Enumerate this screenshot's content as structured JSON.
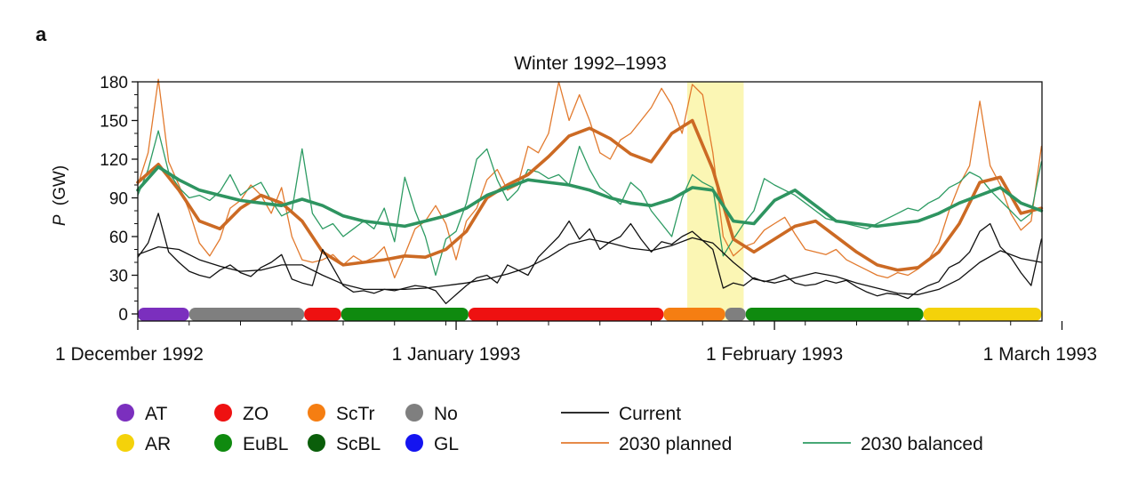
{
  "panel_label": "a",
  "chart_data": {
    "type": "line",
    "title": "Winter 1992–1993",
    "ylabel_var": "P",
    "ylabel_unit": "(GW)",
    "xlabel": "",
    "ylim": [
      0,
      180
    ],
    "yticks": [
      0,
      30,
      60,
      90,
      120,
      150,
      180
    ],
    "xlim_days": [
      0,
      88
    ],
    "xticks": [
      {
        "day": 0,
        "label": "1 December 1992"
      },
      {
        "day": 31,
        "label": "1 January 1993"
      },
      {
        "day": 62,
        "label": "1 February 1993"
      },
      {
        "day": 90,
        "label": "1 March 1993"
      }
    ],
    "grid": false,
    "highlight": {
      "start": 53.5,
      "end": 59.0,
      "color": "#fbf6b4"
    },
    "series": [
      {
        "name": "Current",
        "color": "#111111",
        "style": "thin",
        "x": [
          0,
          1,
          2,
          3,
          4,
          5,
          6,
          7,
          8,
          9,
          10,
          11,
          12,
          13,
          14,
          15,
          16,
          17,
          18,
          19,
          20,
          21,
          22,
          23,
          24,
          25,
          26,
          27,
          28,
          29,
          30,
          31,
          32,
          33,
          34,
          35,
          36,
          37,
          38,
          39,
          40,
          41,
          42,
          43,
          44,
          45,
          46,
          47,
          48,
          49,
          50,
          51,
          52,
          53,
          54,
          55,
          56,
          57,
          58,
          59,
          60,
          61,
          62,
          63,
          64,
          65,
          66,
          67,
          68,
          69,
          70,
          71,
          72,
          73,
          74,
          75,
          76,
          77,
          78,
          79,
          80,
          81,
          82,
          83,
          84,
          85,
          86,
          87,
          88
        ],
        "values": [
          44,
          55,
          78,
          48,
          40,
          33,
          30,
          28,
          34,
          38,
          32,
          29,
          36,
          40,
          46,
          27,
          24,
          22,
          50,
          36,
          22,
          17,
          18,
          16,
          19,
          18,
          20,
          22,
          21,
          18,
          8,
          15,
          22,
          28,
          30,
          24,
          38,
          34,
          30,
          44,
          52,
          60,
          72,
          58,
          66,
          50,
          56,
          60,
          70,
          58,
          48,
          56,
          54,
          60,
          64,
          57,
          50,
          20,
          24,
          22,
          28,
          25,
          27,
          30,
          24,
          22,
          23,
          26,
          24,
          26,
          21,
          17,
          14,
          16,
          15,
          12,
          18,
          22,
          25,
          36,
          40,
          48,
          64,
          70,
          52,
          44,
          32,
          22,
          58
        ]
      },
      {
        "name": "2030 planned",
        "color": "#e27a2e",
        "style": "thin",
        "x": [
          0,
          1,
          2,
          3,
          4,
          5,
          6,
          7,
          8,
          9,
          10,
          11,
          12,
          13,
          14,
          15,
          16,
          17,
          18,
          19,
          20,
          21,
          22,
          23,
          24,
          25,
          26,
          27,
          28,
          29,
          30,
          31,
          32,
          33,
          34,
          35,
          36,
          37,
          38,
          39,
          40,
          41,
          42,
          43,
          44,
          45,
          46,
          47,
          48,
          49,
          50,
          51,
          52,
          53,
          54,
          55,
          56,
          57,
          58,
          59,
          60,
          61,
          62,
          63,
          64,
          65,
          66,
          67,
          68,
          69,
          70,
          71,
          72,
          73,
          74,
          75,
          76,
          77,
          78,
          79,
          80,
          81,
          82,
          83,
          84,
          85,
          86,
          87,
          88
        ],
        "values": [
          100,
          125,
          182,
          118,
          100,
          80,
          55,
          45,
          58,
          82,
          88,
          100,
          92,
          78,
          98,
          60,
          42,
          40,
          42,
          46,
          38,
          45,
          40,
          44,
          52,
          28,
          46,
          66,
          72,
          84,
          70,
          42,
          72,
          82,
          104,
          112,
          96,
          100,
          130,
          125,
          140,
          180,
          150,
          170,
          150,
          125,
          120,
          135,
          140,
          150,
          160,
          175,
          162,
          140,
          178,
          170,
          125,
          60,
          45,
          52,
          55,
          65,
          70,
          75,
          62,
          50,
          48,
          46,
          50,
          42,
          38,
          34,
          30,
          28,
          32,
          30,
          35,
          42,
          55,
          80,
          100,
          115,
          165,
          115,
          100,
          78,
          65,
          72,
          130
        ]
      },
      {
        "name": "2030 balanced",
        "color": "#2d9b63",
        "style": "thin",
        "x": [
          0,
          1,
          2,
          3,
          4,
          5,
          6,
          7,
          8,
          9,
          10,
          11,
          12,
          13,
          14,
          15,
          16,
          17,
          18,
          19,
          20,
          21,
          22,
          23,
          24,
          25,
          26,
          27,
          28,
          29,
          30,
          31,
          32,
          33,
          34,
          35,
          36,
          37,
          38,
          39,
          40,
          41,
          42,
          43,
          44,
          45,
          46,
          47,
          48,
          49,
          50,
          51,
          52,
          53,
          54,
          55,
          56,
          57,
          58,
          59,
          60,
          61,
          62,
          63,
          64,
          65,
          66,
          67,
          68,
          69,
          70,
          71,
          72,
          73,
          74,
          75,
          76,
          77,
          78,
          79,
          80,
          81,
          82,
          83,
          84,
          85,
          86,
          87,
          88
        ],
        "values": [
          92,
          112,
          142,
          110,
          98,
          90,
          92,
          88,
          95,
          108,
          92,
          98,
          102,
          88,
          76,
          80,
          128,
          78,
          66,
          70,
          60,
          66,
          72,
          66,
          82,
          56,
          106,
          80,
          60,
          30,
          58,
          64,
          86,
          120,
          128,
          104,
          88,
          96,
          112,
          110,
          105,
          108,
          100,
          130,
          112,
          98,
          92,
          85,
          102,
          95,
          80,
          70,
          60,
          90,
          108,
          102,
          98,
          45,
          58,
          70,
          80,
          105,
          100,
          96,
          92,
          86,
          80,
          74,
          72,
          70,
          68,
          66,
          70,
          74,
          78,
          82,
          80,
          86,
          90,
          98,
          102,
          110,
          106,
          96,
          88,
          80,
          72,
          78,
          118
        ]
      },
      {
        "name": "Current (smoothed)",
        "color": "#111111",
        "style": "mid",
        "x": [
          0,
          2,
          4,
          6,
          8,
          10,
          12,
          14,
          16,
          18,
          20,
          22,
          24,
          26,
          28,
          30,
          32,
          34,
          36,
          38,
          40,
          42,
          44,
          46,
          48,
          50,
          52,
          54,
          56,
          58,
          60,
          62,
          64,
          66,
          68,
          70,
          72,
          74,
          76,
          78,
          80,
          82,
          84,
          86,
          88
        ],
        "values": [
          46,
          52,
          50,
          42,
          37,
          33,
          34,
          38,
          38,
          30,
          23,
          19,
          19,
          19,
          20,
          22,
          24,
          27,
          31,
          36,
          44,
          54,
          58,
          55,
          51,
          49,
          53,
          59,
          55,
          40,
          27,
          24,
          28,
          32,
          29,
          24,
          20,
          16,
          15,
          19,
          27,
          40,
          49,
          43,
          40
        ]
      },
      {
        "name": "2030 planned (smoothed)",
        "color": "#cc6a24",
        "style": "thick",
        "x": [
          0,
          2,
          4,
          6,
          8,
          10,
          12,
          14,
          16,
          18,
          20,
          22,
          24,
          26,
          28,
          30,
          32,
          34,
          36,
          38,
          40,
          42,
          44,
          46,
          48,
          50,
          52,
          54,
          56,
          58,
          60,
          62,
          64,
          66,
          68,
          70,
          72,
          74,
          76,
          78,
          80,
          82,
          84,
          86,
          88
        ],
        "values": [
          102,
          116,
          96,
          72,
          66,
          82,
          92,
          86,
          72,
          48,
          38,
          40,
          42,
          45,
          44,
          50,
          64,
          90,
          100,
          108,
          122,
          138,
          144,
          136,
          124,
          118,
          140,
          150,
          112,
          58,
          48,
          58,
          68,
          72,
          60,
          48,
          38,
          34,
          36,
          48,
          70,
          102,
          106,
          78,
          82
        ]
      },
      {
        "name": "2030 balanced (smoothed)",
        "color": "#2e9460",
        "style": "thick",
        "x": [
          0,
          2,
          4,
          6,
          8,
          10,
          12,
          14,
          16,
          18,
          20,
          22,
          24,
          26,
          28,
          30,
          32,
          34,
          36,
          38,
          40,
          42,
          44,
          46,
          48,
          50,
          52,
          54,
          56,
          58,
          60,
          62,
          64,
          66,
          68,
          70,
          72,
          74,
          76,
          78,
          80,
          82,
          84,
          86,
          88
        ],
        "values": [
          96,
          114,
          104,
          96,
          92,
          88,
          86,
          84,
          89,
          84,
          76,
          72,
          70,
          68,
          72,
          76,
          82,
          92,
          98,
          104,
          102,
          100,
          96,
          90,
          86,
          84,
          89,
          98,
          96,
          72,
          70,
          88,
          96,
          84,
          72,
          70,
          68,
          70,
          72,
          78,
          86,
          92,
          98,
          86,
          80
        ]
      }
    ],
    "regime_bar": [
      {
        "start": 0.0,
        "end": 5.0,
        "regime": "AT",
        "color": "#7b2fbe"
      },
      {
        "start": 5.0,
        "end": 16.2,
        "regime": "No",
        "color": "#7f7f7f"
      },
      {
        "start": 16.2,
        "end": 19.8,
        "regime": "ZO",
        "color": "#ee1111"
      },
      {
        "start": 19.8,
        "end": 32.2,
        "regime": "EuBL",
        "color": "#0f8a0f"
      },
      {
        "start": 32.2,
        "end": 51.2,
        "regime": "ZO",
        "color": "#ee1111"
      },
      {
        "start": 51.2,
        "end": 57.2,
        "regime": "ScTr",
        "color": "#f57e12"
      },
      {
        "start": 57.2,
        "end": 59.2,
        "regime": "No",
        "color": "#7f7f7f"
      },
      {
        "start": 59.2,
        "end": 76.5,
        "regime": "EuBL",
        "color": "#0f8a0f"
      },
      {
        "start": 76.5,
        "end": 88.0,
        "regime": "AR",
        "color": "#f4d20a"
      }
    ],
    "regime_legend": [
      {
        "label": "AT",
        "color": "#7b2fbe"
      },
      {
        "label": "ZO",
        "color": "#ee1111"
      },
      {
        "label": "ScTr",
        "color": "#f57e12"
      },
      {
        "label": "No",
        "color": "#7f7f7f"
      },
      {
        "label": "AR",
        "color": "#f4d20a"
      },
      {
        "label": "EuBL",
        "color": "#0f8a0f"
      },
      {
        "label": "ScBL",
        "color": "#0a5e0a"
      },
      {
        "label": "GL",
        "color": "#1414f0"
      }
    ],
    "line_legend": [
      {
        "label": "Current",
        "color": "#111111"
      },
      {
        "label": "2030 planned",
        "color": "#e27a2e"
      },
      {
        "label": "2030 balanced",
        "color": "#2d9b63"
      }
    ]
  }
}
